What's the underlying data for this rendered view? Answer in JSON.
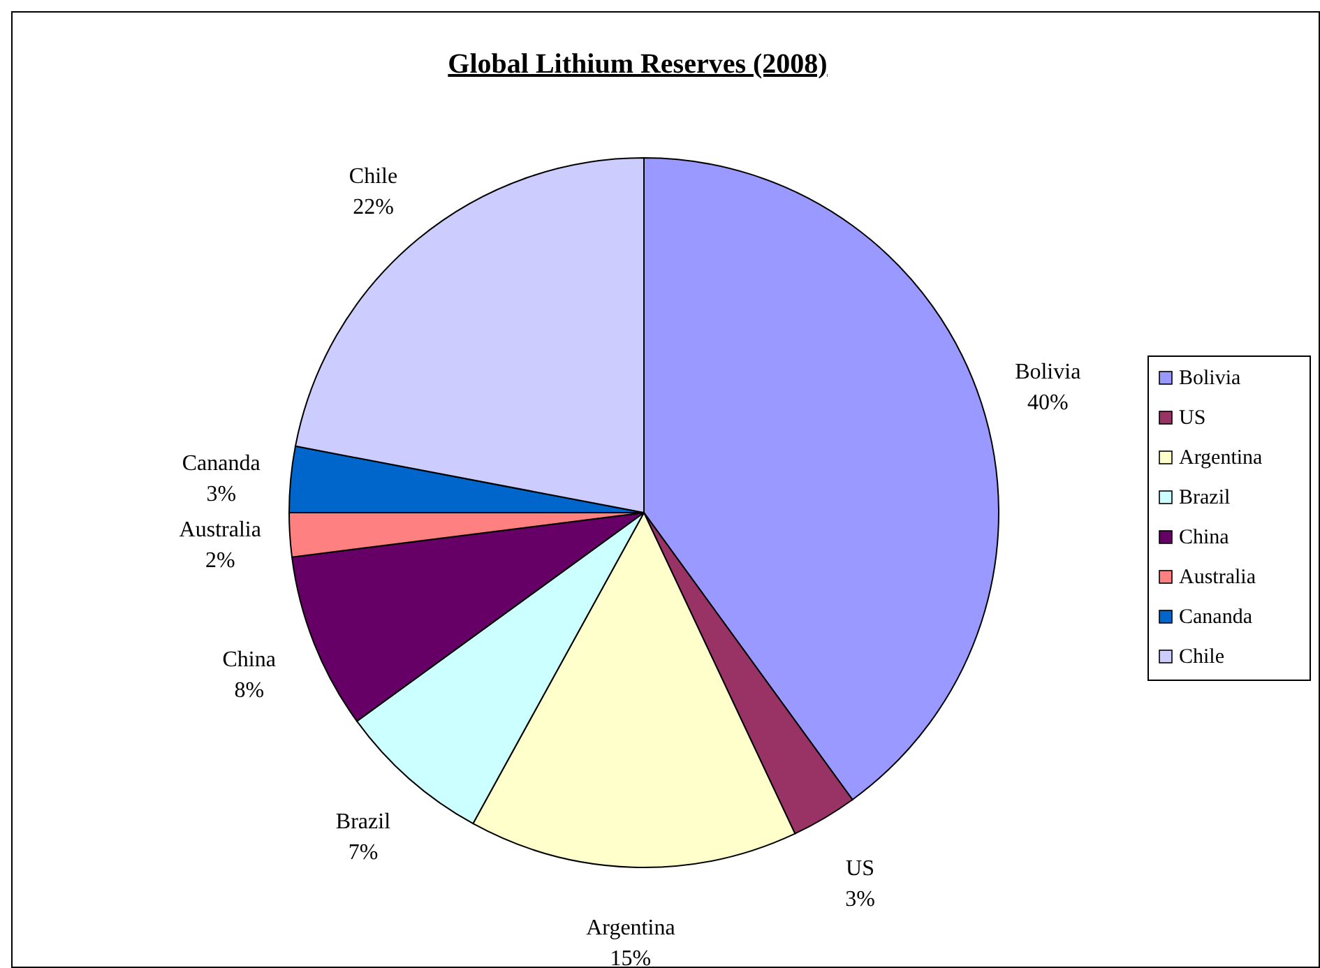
{
  "chart_data": {
    "type": "pie",
    "title": "Global Lithium Reserves (2008)",
    "categories": [
      "Bolivia",
      "US",
      "Argentina",
      "Brazil",
      "China",
      "Australia",
      "Cananda",
      "Chile"
    ],
    "values": [
      40,
      3,
      15,
      7,
      8,
      2,
      3,
      22
    ],
    "value_labels": [
      "40%",
      "3%",
      "15%",
      "7%",
      "8%",
      "2%",
      "3%",
      "22%"
    ],
    "colors": [
      "#9999ff",
      "#993366",
      "#ffffcc",
      "#ccffff",
      "#660066",
      "#ff8080",
      "#0066cc",
      "#ccccff"
    ],
    "legend": "right"
  }
}
